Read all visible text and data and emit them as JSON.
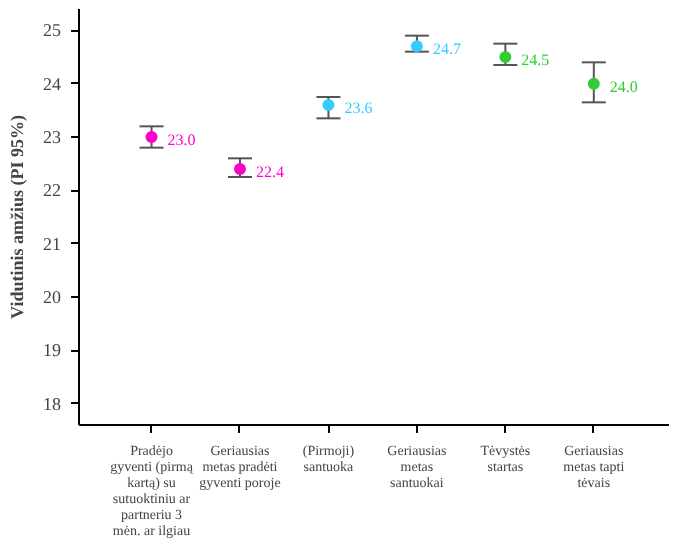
{
  "chart_data": {
    "type": "scatter",
    "ylabel": "Vidutinis amžius (PI 95%)",
    "categories": [
      "Pradėjo gyventi (pirmą kartą) su sutuoktiniu ar partneriu 3 mėn. ar ilgiau",
      "Geriausias metas pradėti gyventi poroje",
      "(Pirmoji) santuoka",
      "Geriausias metas santuokai",
      "Tėvystės startas",
      "Geriausias metas tapti tėvais"
    ],
    "values": [
      23.0,
      22.4,
      23.6,
      24.7,
      24.5,
      24.0
    ],
    "colors": [
      "#ff00cc",
      "#ff00cc",
      "#33ccff",
      "#33ccff",
      "#33cc33",
      "#33cc33"
    ],
    "errors": [
      [
        22.8,
        23.2
      ],
      [
        22.25,
        22.6
      ],
      [
        23.35,
        23.75
      ],
      [
        24.6,
        24.9
      ],
      [
        24.35,
        24.75
      ],
      [
        23.65,
        24.4
      ]
    ],
    "value_labels": [
      "23.0",
      "22.4",
      "23.6",
      "24.7",
      "24.5",
      "24.0"
    ],
    "ylim": [
      17.6,
      25.4
    ],
    "yticks": [
      18,
      19,
      20,
      21,
      22,
      23,
      24,
      25
    ],
    "marker": "circle",
    "grid": false
  }
}
